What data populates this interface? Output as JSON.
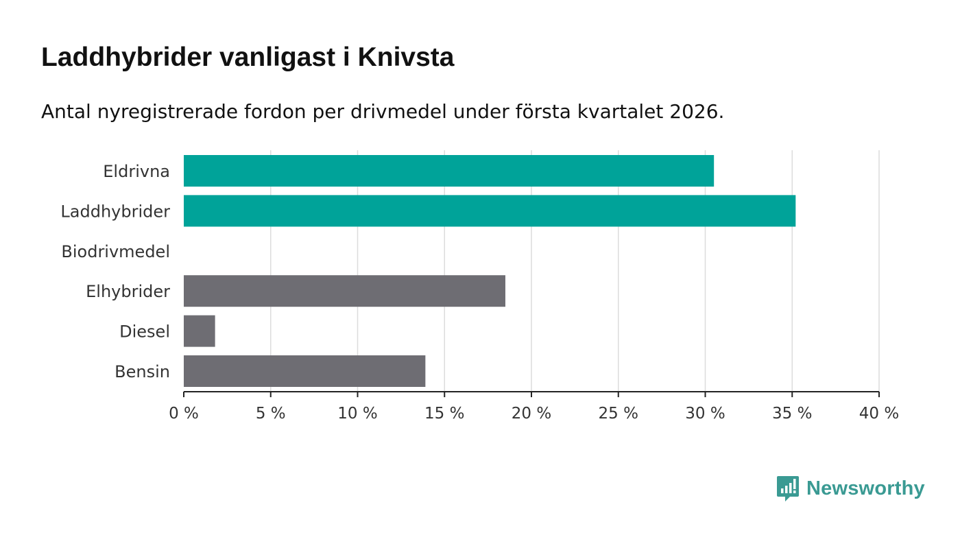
{
  "title": "Laddhybrider vanligast i Knivsta",
  "subtitle": "Antal nyregistrerade fordon per drivmedel under första kvartalet 2026.",
  "brand": {
    "name": "Newsworthy",
    "color": "#3a9a93",
    "icon": "bar-chart-speech-bubble-icon"
  },
  "chart_data": {
    "type": "bar",
    "orientation": "horizontal",
    "categories": [
      "Eldrivna",
      "Laddhybrider",
      "Biodrivmedel",
      "Elhybrider",
      "Diesel",
      "Bensin"
    ],
    "values": [
      30.5,
      35.2,
      0,
      18.5,
      1.8,
      13.9
    ],
    "colors": [
      "#00a399",
      "#00a399",
      "#00a399",
      "#6e6d73",
      "#6e6d73",
      "#6e6d73"
    ],
    "xlim": [
      0,
      40
    ],
    "xticks": [
      0,
      5,
      10,
      15,
      20,
      25,
      30,
      35,
      40
    ],
    "xtick_labels": [
      "0 %",
      "5 %",
      "10 %",
      "15 %",
      "20 %",
      "25 %",
      "30 %",
      "35 %",
      "40 %"
    ],
    "grid": true,
    "xlabel": "",
    "ylabel": ""
  }
}
